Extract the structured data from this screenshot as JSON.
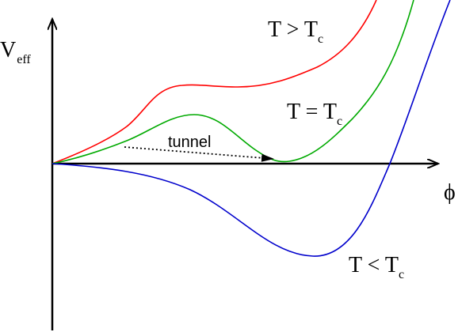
{
  "labels": {
    "y_axis_main": "V",
    "y_axis_sub": "eff",
    "x_axis": "ϕ",
    "tunnel": "tunnel",
    "curve_above": {
      "main": "T > T",
      "sub": "c"
    },
    "curve_equal": {
      "main": "T = T",
      "sub": "c"
    },
    "curve_below": {
      "main": "T < T",
      "sub": "c"
    }
  },
  "colors": {
    "axes": "#000000",
    "above": "#ff0000",
    "equal": "#00aa00",
    "below": "#0000cc",
    "tunnel_arrow": "#000000"
  }
}
